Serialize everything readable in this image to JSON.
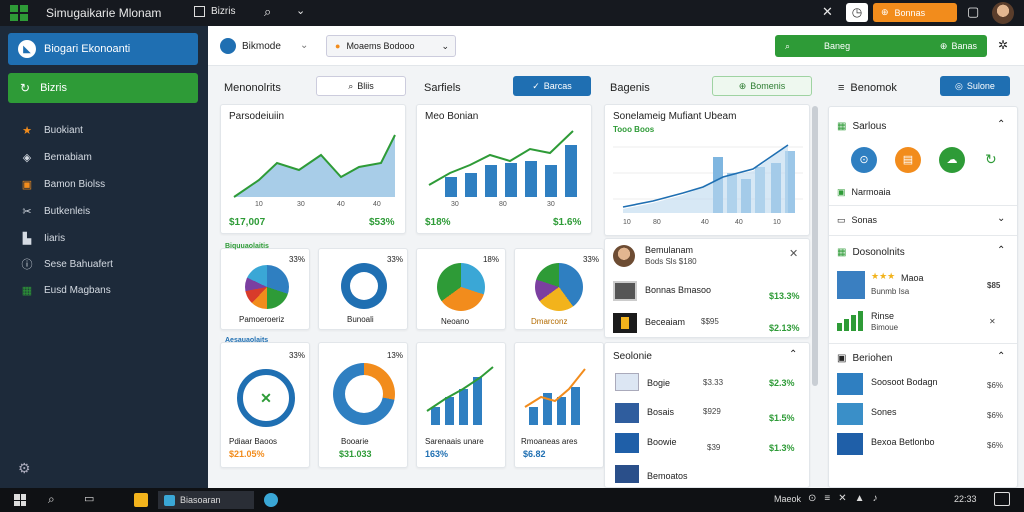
{
  "app": {
    "title": "Simugaikarie Mlonam",
    "tab_label": "Bizris"
  },
  "topbar": {
    "orange_button": "Bonnas"
  },
  "sidebar": {
    "header": "Biogari Ekonoanti",
    "active": "Bizris",
    "items": [
      "Buokiant",
      "Bemabiam",
      "Bamon Biolss",
      "Butkenleis",
      "Iiaris",
      "Sese Bahuafert",
      "Eusd Magbans"
    ]
  },
  "toolbar": {
    "breadcrumb": "Bikmode",
    "dropdown": "Moaems Bodooo",
    "green_left": "Baneg",
    "green_right": "Banas"
  },
  "sections": {
    "s1_title": "Menonolrits",
    "s1_search": "Bliis",
    "s2_title": "Sarfiels",
    "s2_button": "Barcas",
    "s3_title": "Bagenis",
    "s3_button": "Bomenis",
    "s4_title": "Benomok",
    "s4_button": "Sulone"
  },
  "cards": {
    "c1": {
      "title": "Parsodeiuiin",
      "ticks": [
        "10",
        "30",
        "40",
        "40"
      ],
      "value": "$17,007",
      "pct": "$53%"
    },
    "c2": {
      "title": "Meo Bonian",
      "ticks": [
        "30",
        "80",
        "30"
      ],
      "value": "$18%",
      "pct": "$1.6%"
    },
    "c3": {
      "title": "Sonelameig Mufiant Ubeam",
      "subtitle": "Tooo Boos",
      "ticks": [
        "10",
        "80",
        "40",
        "40",
        "10"
      ]
    }
  },
  "pies": {
    "p1": {
      "corner": "Biquuaolaitis",
      "pct": "33%",
      "label": "Pamoeroeriz"
    },
    "p2": {
      "pct": "33%",
      "label": "Bunoali"
    },
    "p3": {
      "pct": "18%",
      "label": "Neoano"
    },
    "p4": {
      "pct": "33%",
      "label": "Dmarconz"
    }
  },
  "row2": {
    "r1": {
      "corner": "Aesauaolaits",
      "pct": "33%",
      "label": "Pdiaar Baoos",
      "value": "$21.05%"
    },
    "r2": {
      "pct": "13%",
      "label": "Booarie",
      "value": "$31.033"
    },
    "r3": {
      "label": "Sarenaais unare",
      "value": "163%"
    },
    "r4": {
      "label": "Rmoaneas ares",
      "value": "$6.82"
    }
  },
  "col3_list1": [
    {
      "label": "Bemulanam",
      "sub": "Bods Sls  $180"
    },
    {
      "label": "Bonnas Bmasoo",
      "sub": "",
      "value": "$13.3%"
    },
    {
      "label": "Beceaiam",
      "sub": "$$95",
      "value": "$2.13%"
    }
  ],
  "col3_header2": "Seolonie",
  "col3_list2": [
    {
      "label": "Bogie",
      "mid": "$3.33",
      "value": "$2.3%"
    },
    {
      "label": "Bosais",
      "mid": "$929",
      "value": "$1.5%"
    },
    {
      "label": "Boowie",
      "mid": "$39",
      "value": "$1.3%"
    },
    {
      "label": "Bemoatos",
      "mid": "",
      "value": ""
    }
  ],
  "col4": {
    "h1": "Sarlous",
    "r1": "Narmoaia",
    "r2": "Sonas",
    "h2": "Dosonolnits",
    "items2": [
      {
        "label": "Maoa",
        "sub": "Bunmb Isa",
        "value": "$85"
      },
      {
        "label": "Rinse",
        "sub": "Bimoue",
        "value": "✕"
      }
    ],
    "h3": "Beriohen",
    "items3": [
      {
        "label": "Soosoot Bodagn",
        "value": "$6%"
      },
      {
        "label": "Sones",
        "value": "$6%"
      },
      {
        "label": "Bexoa Betlonbo",
        "value": "$6%"
      }
    ]
  },
  "taskbar": {
    "app1": "Biasoaran",
    "right_text": "Maeok",
    "time": "22:33"
  },
  "colors": {
    "accent_blue": "#1f6fb2",
    "accent_green": "#2e9b37",
    "orange": "#f28c1c",
    "sidebar": "#1d2a3a"
  }
}
